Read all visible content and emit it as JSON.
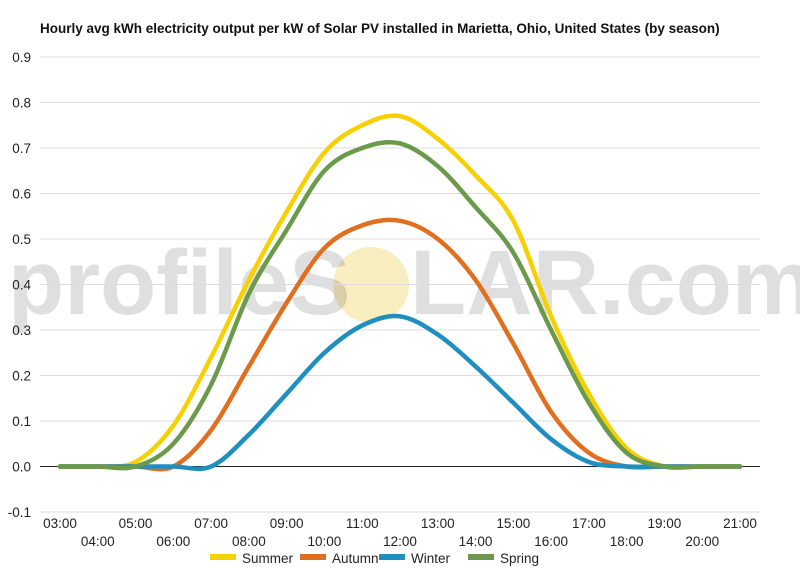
{
  "chart_data": {
    "type": "line",
    "title": "Hourly avg kWh electricity output per kW of Solar PV installed in Marietta, Ohio, United States (by season)",
    "xlabel": "",
    "ylabel": "",
    "ylim": [
      -0.1,
      0.9
    ],
    "yticks": [
      "-0.1",
      "0.0",
      "0.1",
      "0.2",
      "0.3",
      "0.4",
      "0.5",
      "0.6",
      "0.7",
      "0.8",
      "0.9"
    ],
    "x": [
      "03:00",
      "04:00",
      "05:00",
      "06:00",
      "07:00",
      "08:00",
      "09:00",
      "10:00",
      "11:00",
      "12:00",
      "13:00",
      "14:00",
      "15:00",
      "16:00",
      "17:00",
      "18:00",
      "19:00",
      "20:00",
      "21:00"
    ],
    "grid": true,
    "legend_position": "bottom",
    "series": [
      {
        "name": "Summer",
        "color": "#f7d000",
        "values": [
          0.0,
          0.0,
          0.01,
          0.09,
          0.24,
          0.41,
          0.56,
          0.69,
          0.75,
          0.77,
          0.72,
          0.64,
          0.54,
          0.33,
          0.16,
          0.04,
          0.0,
          0.0,
          0.0
        ]
      },
      {
        "name": "Autumn",
        "color": "#e07020",
        "values": [
          0.0,
          0.0,
          0.0,
          0.0,
          0.08,
          0.22,
          0.36,
          0.48,
          0.53,
          0.54,
          0.5,
          0.41,
          0.27,
          0.12,
          0.03,
          0.0,
          0.0,
          0.0,
          0.0
        ]
      },
      {
        "name": "Winter",
        "color": "#1f8fbf",
        "values": [
          0.0,
          0.0,
          0.0,
          0.0,
          0.0,
          0.07,
          0.16,
          0.25,
          0.31,
          0.33,
          0.29,
          0.22,
          0.14,
          0.06,
          0.01,
          0.0,
          0.0,
          0.0,
          0.0
        ]
      },
      {
        "name": "Spring",
        "color": "#6a9a4a",
        "values": [
          0.0,
          0.0,
          0.0,
          0.05,
          0.18,
          0.38,
          0.52,
          0.65,
          0.7,
          0.71,
          0.66,
          0.57,
          0.47,
          0.3,
          0.14,
          0.03,
          0.0,
          0.0,
          0.0
        ]
      }
    ]
  },
  "watermark": {
    "text_left": "profileS",
    "text_right": "LAR.com",
    "sun_color": "#f3e08a"
  },
  "colors": {
    "gridline": "#dddddd",
    "zero_line": "#222222"
  }
}
